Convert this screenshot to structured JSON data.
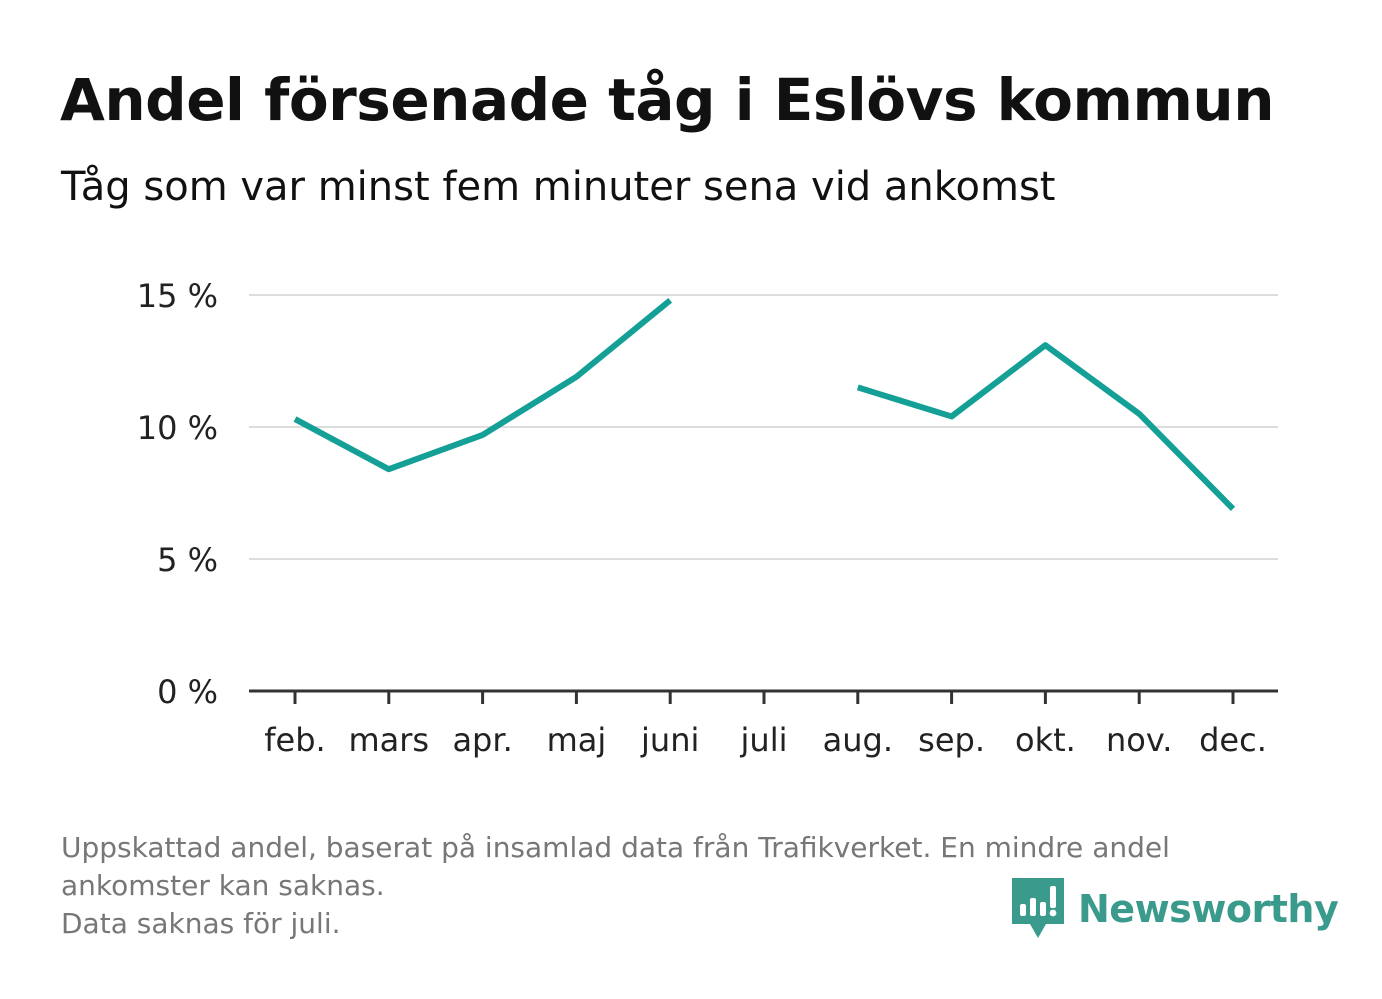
{
  "header": {
    "title": "Andel försenade tåg i Eslövs kommun",
    "subtitle": "Tåg som var minst fem minuter sena vid ankomst"
  },
  "footnote": {
    "line1": "Uppskattad andel, baserat på insamlad data från Trafikverket. En mindre andel",
    "line2": "ankomster kan saknas.",
    "line3": "Data saknas för juli."
  },
  "brand": {
    "name": "Newsworthy",
    "logo_icon": "bar-chart-speech-bubble-icon",
    "color": "#3a9a8b"
  },
  "colors": {
    "line": "#14a096",
    "grid": "#dddddd",
    "axis": "#333333",
    "tick_text": "#222222"
  },
  "chart_data": {
    "type": "line",
    "title": "Andel försenade tåg i Eslövs kommun",
    "subtitle": "Tåg som var minst fem minuter sena vid ankomst",
    "xlabel": "",
    "ylabel": "",
    "categories": [
      "feb.",
      "mars",
      "apr.",
      "maj",
      "juni",
      "juli",
      "aug.",
      "sep.",
      "okt.",
      "nov.",
      "dec."
    ],
    "series": [
      {
        "values": [
          10.3,
          8.4,
          9.7,
          11.9,
          14.8,
          null,
          11.5,
          10.4,
          13.1,
          10.5,
          6.9
        ]
      }
    ],
    "ylim": [
      0,
      15
    ],
    "yticks": [
      0,
      5,
      10,
      15
    ],
    "ytick_labels": [
      "0 %",
      "5 %",
      "10 %",
      "15 %"
    ],
    "grid": true,
    "legend": "none"
  }
}
